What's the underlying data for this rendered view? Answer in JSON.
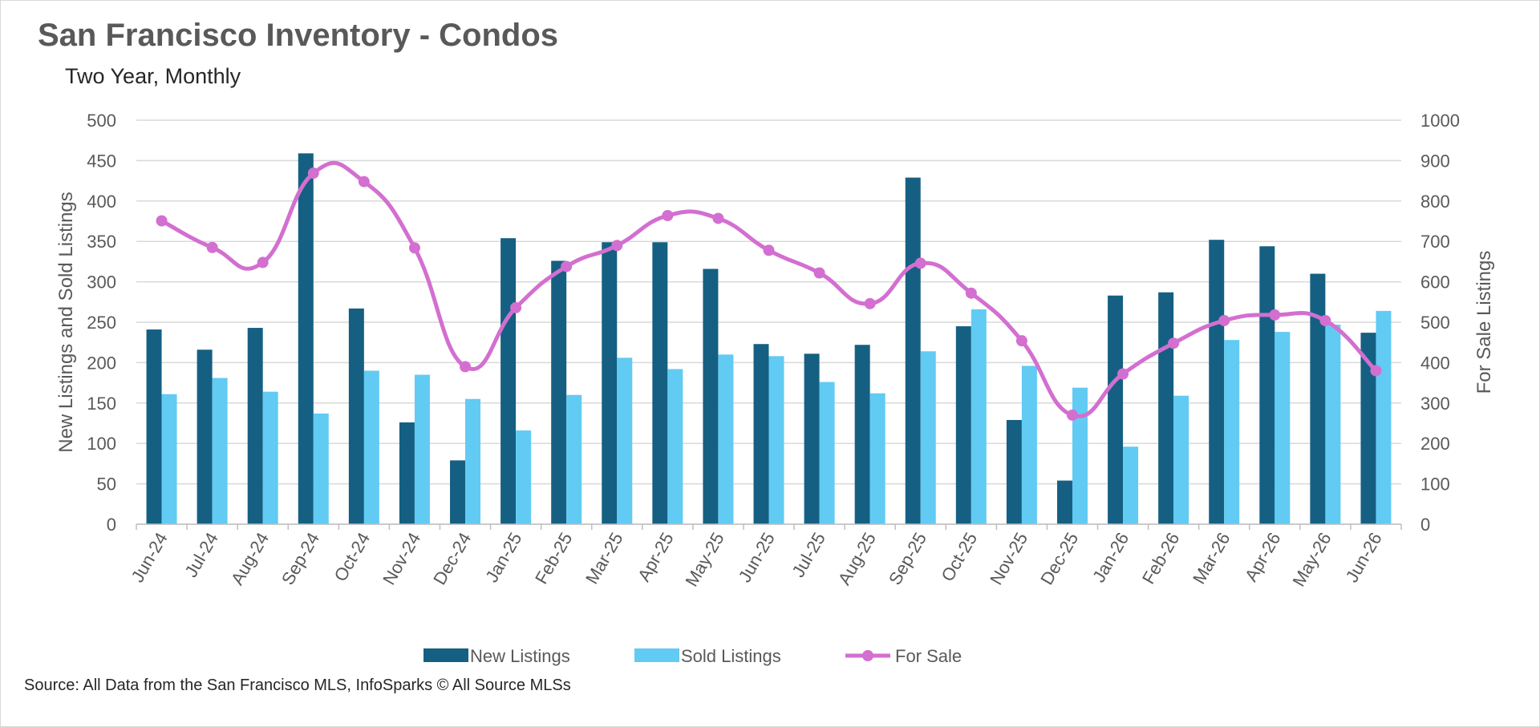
{
  "title": "San Francisco Inventory - Condos",
  "subtitle": "Two Year, Monthly",
  "source": "Source: All Data from the San Francisco MLS, InfoSparks © All Source MLSs",
  "chart_data": {
    "type": "bar",
    "categories": [
      "Jun-24",
      "Jul-24",
      "Aug-24",
      "Sep-24",
      "Oct-24",
      "Nov-24",
      "Dec-24",
      "Jan-25",
      "Feb-25",
      "Mar-25",
      "Apr-25",
      "May-25",
      "Jun-25",
      "Jul-25",
      "Aug-25",
      "Sep-25",
      "Oct-25",
      "Nov-25",
      "Dec-25",
      "Jan-26",
      "Feb-26",
      "Mar-26",
      "Apr-26",
      "May-26",
      "Jun-26"
    ],
    "series": [
      {
        "name": "New Listings",
        "type": "bar",
        "axis": "left",
        "color": "#156082",
        "values": [
          241,
          216,
          243,
          459,
          267,
          126,
          79,
          354,
          326,
          349,
          349,
          316,
          223,
          211,
          222,
          429,
          245,
          129,
          54,
          283,
          287,
          352,
          344,
          310,
          237
        ]
      },
      {
        "name": "Sold Listings",
        "type": "bar",
        "axis": "left",
        "color": "#61CBF3",
        "values": [
          161,
          181,
          164,
          137,
          190,
          185,
          155,
          116,
          160,
          206,
          192,
          210,
          208,
          176,
          162,
          214,
          266,
          196,
          169,
          96,
          159,
          228,
          238,
          247,
          264
        ]
      },
      {
        "name": "For Sale",
        "type": "line",
        "axis": "right",
        "color": "#D36FD0",
        "values": [
          751,
          685,
          648,
          869,
          848,
          684,
          390,
          536,
          638,
          690,
          764,
          757,
          678,
          622,
          546,
          646,
          572,
          454,
          270,
          372,
          448,
          504,
          518,
          504,
          380
        ]
      }
    ],
    "ylabel": "New Listings and Sold Listings",
    "y2label": "For Sale Listings",
    "ylim": [
      0,
      500
    ],
    "y2lim": [
      0,
      1000
    ],
    "yticks": [
      "0",
      "50",
      "100",
      "150",
      "200",
      "250",
      "300",
      "350",
      "400",
      "450",
      "500"
    ],
    "y2ticks": [
      "0",
      "100",
      "200",
      "300",
      "400",
      "500",
      "600",
      "700",
      "800",
      "900",
      "1000"
    ],
    "grid": true,
    "legend": "bottom"
  }
}
